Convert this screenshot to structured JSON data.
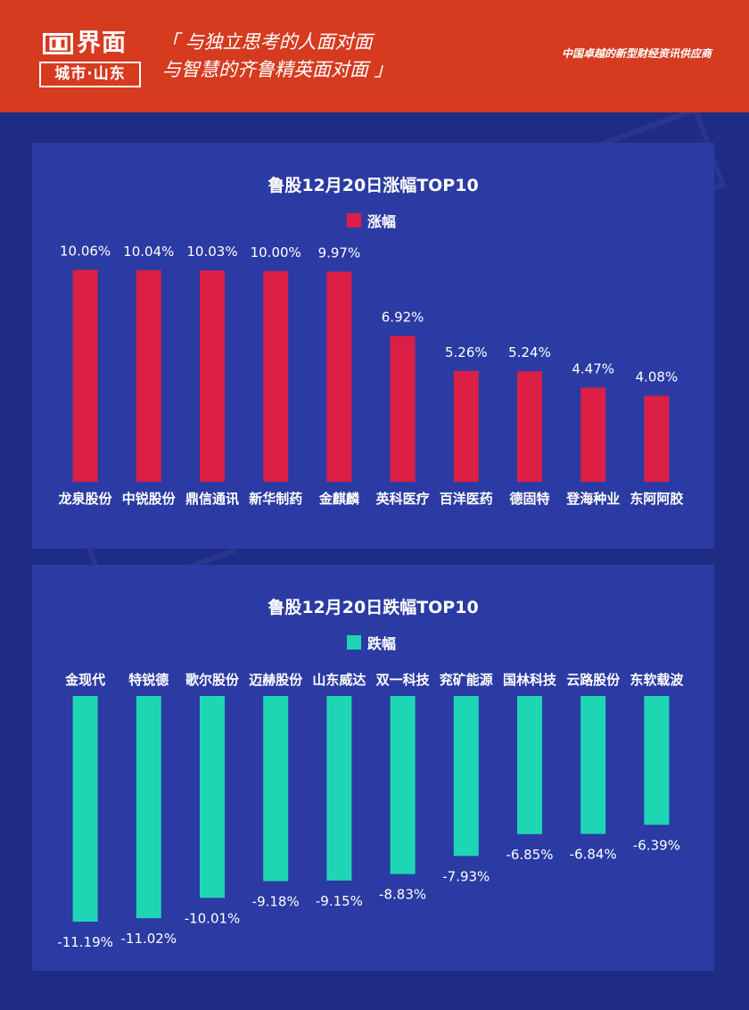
{
  "header": {
    "logo_main": "界面",
    "logo_sub": "城市·山东",
    "slogan_line1": "「 与独立思考的人面对面",
    "slogan_line2": "与智慧的齐鲁精英面对面 」",
    "tagline": "中国卓越的新型财经资讯供应商"
  },
  "colors": {
    "background": "#1f2c86",
    "panel": "#2b3ba3",
    "header": "#d63a1f",
    "gain_bar": "#dc1f44",
    "loss_bar": "#1fd6b4"
  },
  "chart_data": [
    {
      "type": "bar",
      "title": "鲁股12月20日涨幅TOP10",
      "legend": "涨幅",
      "legend_placement": "top-center",
      "grid": false,
      "categories": [
        "龙泉股份",
        "中锐股份",
        "鼎信通讯",
        "新华制药",
        "金麒麟",
        "英科医疗",
        "百洋医药",
        "德固特",
        "登海种业",
        "东阿阿胶"
      ],
      "values": [
        10.06,
        10.04,
        10.03,
        10.0,
        9.97,
        6.92,
        5.26,
        5.24,
        4.47,
        4.08
      ],
      "labels": [
        "10.06%",
        "10.04%",
        "10.03%",
        "10.00%",
        "9.97%",
        "6.92%",
        "5.26%",
        "5.24%",
        "4.47%",
        "4.08%"
      ],
      "ylim": [
        0,
        10.5
      ]
    },
    {
      "type": "bar",
      "title": "鲁股12月20日跌幅TOP10",
      "legend": "跌幅",
      "legend_placement": "top-center",
      "grid": false,
      "categories": [
        "金现代",
        "特锐德",
        "歌尔股份",
        "迈赫股份",
        "山东威达",
        "双一科技",
        "兖矿能源",
        "国林科技",
        "云路股份",
        "东软载波"
      ],
      "values": [
        -11.19,
        -11.02,
        -10.01,
        -9.18,
        -9.15,
        -8.83,
        -7.93,
        -6.85,
        -6.84,
        -6.39
      ],
      "labels": [
        "-11.19%",
        "-11.02%",
        "-10.01%",
        "-9.18%",
        "-9.15%",
        "-8.83%",
        "-7.93%",
        "-6.85%",
        "-6.84%",
        "-6.39%"
      ],
      "ylim": [
        -11.5,
        0
      ]
    }
  ]
}
